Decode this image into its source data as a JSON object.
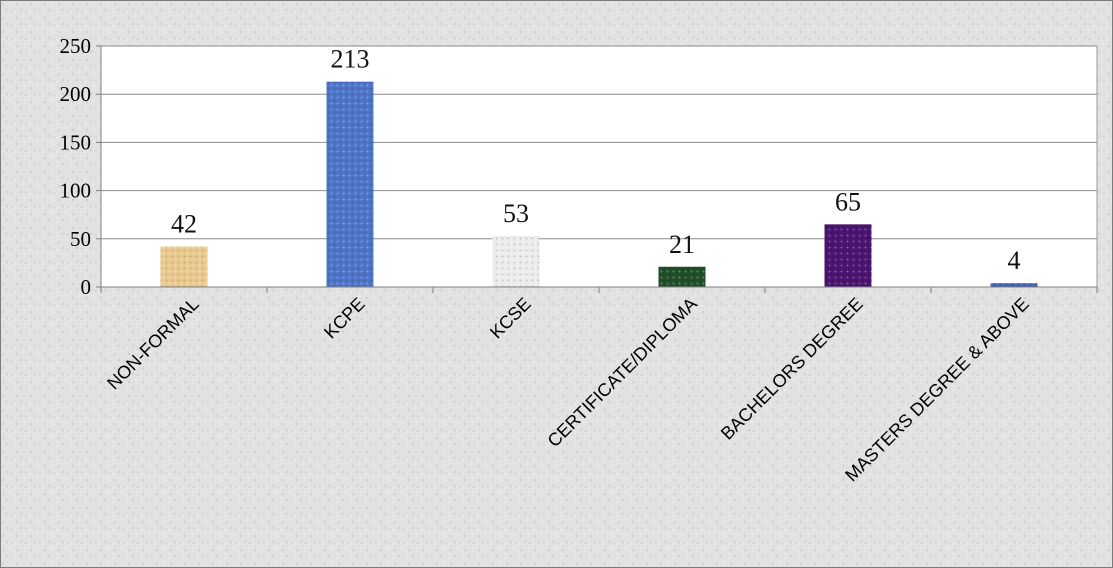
{
  "chart_data": {
    "type": "bar",
    "categories": [
      "NON-FORMAL",
      "KCPE",
      "KCSE",
      "CERTIFICATE/DIPLOMA",
      "BACHELORS DEGREE",
      "MASTERS DEGREE & ABOVE"
    ],
    "values": [
      42,
      213,
      53,
      21,
      65,
      4
    ],
    "data_labels": [
      "42",
      "213",
      "53",
      "21",
      "65",
      "4"
    ],
    "yticks": [
      "0",
      "50",
      "100",
      "150",
      "200",
      "250"
    ],
    "ylim": [
      0,
      250
    ],
    "grid": true,
    "legend": "none",
    "bar_colors": [
      "#e9c98f",
      "#4e74c8",
      "#ececec",
      "#1f4f2a",
      "#4b1470",
      "#3f63b3"
    ],
    "background_color": "#e4e4e4",
    "plot_background": "#ffffff",
    "gridline_color": "#8c8c8c"
  }
}
